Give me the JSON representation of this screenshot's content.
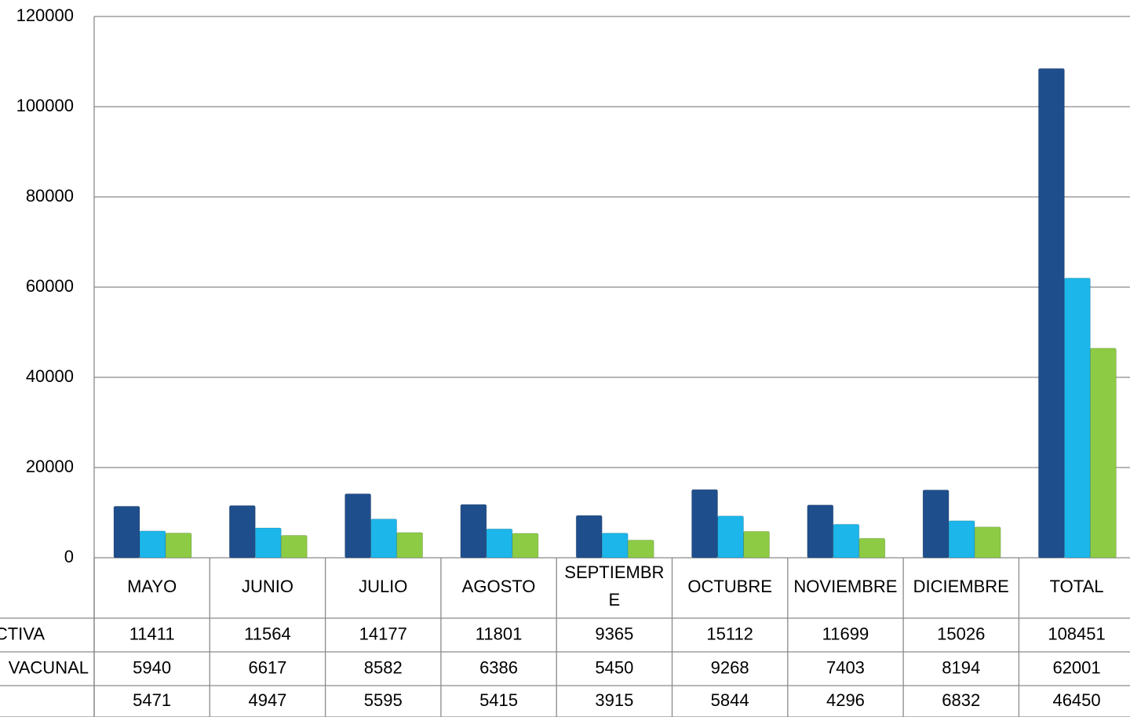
{
  "chart_data": {
    "type": "bar",
    "categories": [
      "MAYO",
      "JUNIO",
      "JULIO",
      "AGOSTO",
      "SEPTIEMBRE",
      "OCTUBRE",
      "NOVIEMBRE",
      "DICIEMBRE",
      "TOTAL"
    ],
    "series": [
      {
        "name": "CTIVA",
        "color": "#1f4e8c",
        "values": [
          11411,
          11564,
          14177,
          11801,
          9365,
          15112,
          11699,
          15026,
          108451
        ]
      },
      {
        "name": "VACUNAL",
        "color": "#1cb6ea",
        "values": [
          5940,
          6617,
          8582,
          6386,
          5450,
          9268,
          7403,
          8194,
          62001
        ]
      },
      {
        "name": null,
        "color": "#8dcb45",
        "values": [
          5471,
          4947,
          5595,
          5415,
          3915,
          5844,
          4296,
          6832,
          46450
        ]
      }
    ],
    "ylim": [
      0,
      120000
    ],
    "yticks": [
      0,
      20000,
      40000,
      60000,
      80000,
      100000,
      120000
    ],
    "grid": true
  }
}
